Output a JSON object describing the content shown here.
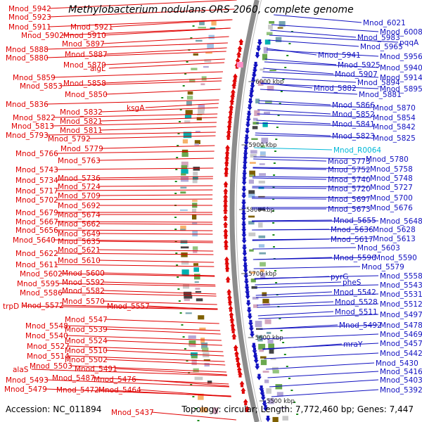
{
  "title": "Methylobacterium nodulans ORS 2060, complete genome",
  "accession": "Accession: NC_011894",
  "summary": "Topology: circular; Length: 7,772,460 bp; Genes: 7,447",
  "colors": {
    "left_genes": "#e00000",
    "right_genes": "#1010c0",
    "rna": "#00b8d8",
    "backbone": "#8c8c8c"
  },
  "position_ticks": [
    "6000 kbp",
    "5900 kbp",
    "5800 kbp",
    "5700 kbp",
    "5600 kbp",
    "5500 kbp"
  ],
  "left_labels": [
    "Mnod_5942",
    "Mnod_5923",
    "Mnod_5911",
    "Mnod_5921",
    "Mnod_5902",
    "Mnod_5910",
    "Mnod_5897",
    "Mnod_5888",
    "Mnod_5887",
    "Mnod_5880",
    "Mnod_5879",
    "algL",
    "Mnod_5859",
    "Mnod_5853",
    "Mnod_5858",
    "Mnod_5850",
    "Mnod_5836",
    "ksgA",
    "Mnod_5832",
    "Mnod_5822",
    "Mnod_5821",
    "Mnod_5813",
    "Mnod_5811",
    "Mnod_5793",
    "Mnod_5792",
    "Mnod_5779",
    "Mnod_5766",
    "Mnod_5763",
    "Mnod_5743",
    "Mnod_5736",
    "Mnod_5734",
    "Mnod_5724",
    "Mnod_5717",
    "Mnod_5709",
    "Mnod_5702",
    "Mnod_5692",
    "Mnod_5679",
    "Mnod_5674",
    "Mnod_5667",
    "Mnod_5662",
    "Mnod_5656",
    "Mnod_5649",
    "Mnod_5640",
    "Mnod_5635",
    "Mnod_5622",
    "Mnod_5621",
    "Mnod_5611",
    "Mnod_5610",
    "Mnod_5602",
    "Mnod_5600",
    "Mnod_5595",
    "Mnod_5592",
    "Mnod_5586",
    "Mnod_5582",
    "trpD",
    "Mnod_5572",
    "Mnod_5570",
    "Mnod_5557",
    "Mnod_5548",
    "Mnod_5547",
    "Mnod_5540",
    "Mnod_5539",
    "Mnod_5527",
    "Mnod_5524",
    "Mnod_5514",
    "Mnod_5510",
    "Mnod_5503",
    "Mnod_5502",
    "alaS",
    "Mnod_5491",
    "Mnod_5493",
    "Mnod_5487",
    "Mnod_5476",
    "Mnod_5479",
    "Mnod_5472",
    "Mnod_5464",
    "Mnod_5437"
  ],
  "right_labels": [
    "Mnod_6021",
    "Mnod_6008",
    "Mnod_5983",
    "pqqA",
    "Mnod_5965",
    "Mnod_5941",
    "Mnod_5956",
    "Mnod_5925",
    "Mnod_5940",
    "Mnod_5907",
    "Mnod_5914",
    "Mnod_5894",
    "Mnod_5895",
    "Mnod_5882",
    "Mnod_5881",
    "Mnod_5866",
    "Mnod_5870",
    "Mnod_5852",
    "Mnod_5854",
    "Mnod_5841",
    "Mnod_5842",
    "Mnod_5823",
    "Mnod_5825",
    "Mnod_R0064",
    "Mnod_5773",
    "Mnod_5780",
    "Mnod_5752",
    "Mnod_5758",
    "Mnod_5740",
    "Mnod_5748",
    "Mnod_5720",
    "Mnod_5727",
    "Mnod_5697",
    "Mnod_5700",
    "Mnod_5673",
    "Mnod_5676",
    "Mnod_5655",
    "Mnod_5648",
    "Mnod_5636",
    "Mnod_5628",
    "Mnod_5617",
    "Mnod_5613",
    "Mnod_5603",
    "Mnod_5596",
    "Mnod_5590",
    "Mnod_5579",
    "pyrG",
    "Mnod_5558",
    "pheS",
    "Mnod_5543",
    "Mnod_5542",
    "Mnod_5531",
    "Mnod_5528",
    "Mnod_5512",
    "Mnod_5511",
    "Mnod_5497",
    "Mnod_5492",
    "Mnod_5478",
    "Mnod_5469",
    "mraY",
    "Mnod_5457",
    "Mnod_5442",
    "Mnod_5430",
    "Mnod_5416",
    "Mnod_5403",
    "Mnod_5392"
  ]
}
